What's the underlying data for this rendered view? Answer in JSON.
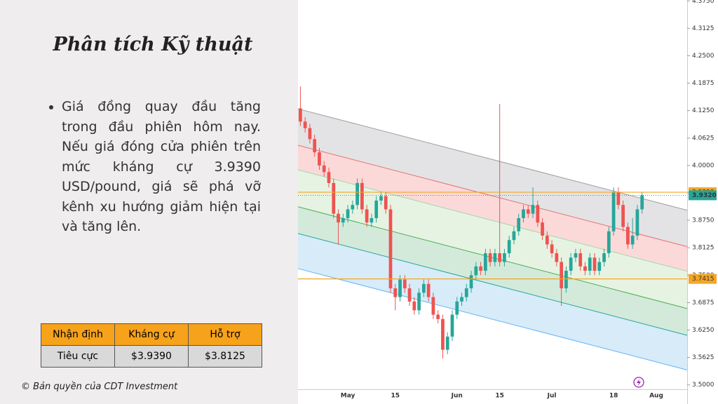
{
  "slide": {
    "title": "Phân tích Kỹ thuật",
    "bullet": "Giá đồng quay đầu tăng trong đầu phiên hôm nay. Nếu giá đóng cửa phiên trên mức kháng cự 3.9390 USD/pound, giá sẽ phá vỡ kênh xu hướng giảm hiện tại và tăng lên.",
    "table": {
      "header": [
        "Nhận định",
        "Kháng cự",
        "Hỗ trợ"
      ],
      "rows": [
        [
          "Tiêu cực",
          "$3.9390",
          "$3.8125"
        ]
      ]
    },
    "copyright": "© Bản quyền của CDT Investment"
  },
  "chart_data": {
    "type": "candlestick",
    "categories": [
      null,
      null,
      null,
      null,
      null,
      null,
      null,
      null,
      null,
      null,
      "May",
      null,
      null,
      null,
      null,
      null,
      null,
      null,
      null,
      null,
      "15",
      null,
      null,
      null,
      null,
      null,
      null,
      null,
      null,
      null,
      null,
      null,
      null,
      "Jun",
      null,
      null,
      null,
      null,
      null,
      null,
      null,
      null,
      "15",
      null,
      null,
      null,
      null,
      null,
      null,
      null,
      null,
      null,
      null,
      "Jul",
      null,
      null,
      null,
      null,
      null,
      null,
      null,
      null,
      null,
      null,
      null,
      null,
      "18",
      null,
      null,
      null,
      null,
      null,
      null,
      null,
      null,
      "Aug",
      null,
      null,
      null,
      null,
      null,
      null
    ],
    "open": [
      4.13,
      4.1,
      4.085,
      4.06,
      4.03,
      4.0,
      3.985,
      3.96,
      3.89,
      3.87,
      3.88,
      3.9,
      3.91,
      3.96,
      3.9,
      3.87,
      3.88,
      3.92,
      3.93,
      3.9,
      3.72,
      3.7,
      3.74,
      3.72,
      3.69,
      3.67,
      3.71,
      3.73,
      3.7,
      3.66,
      3.65,
      3.58,
      3.61,
      3.66,
      3.69,
      3.7,
      3.72,
      3.75,
      3.77,
      3.76,
      3.8,
      3.78,
      3.8,
      3.78,
      3.8,
      3.83,
      3.85,
      3.88,
      3.9,
      3.89,
      3.91,
      3.87,
      3.84,
      3.82,
      3.8,
      3.78,
      3.72,
      3.76,
      3.79,
      3.8,
      3.77,
      3.76,
      3.79,
      3.76,
      3.78,
      3.8,
      3.85,
      3.94,
      3.91,
      3.86,
      3.82,
      3.84,
      3.9,
      null,
      null,
      null,
      null,
      null,
      null,
      null,
      null,
      null
    ],
    "high": [
      4.18,
      4.11,
      4.095,
      4.07,
      4.04,
      4.01,
      3.995,
      3.97,
      3.9,
      3.89,
      3.91,
      3.92,
      3.97,
      3.97,
      3.91,
      3.89,
      3.93,
      3.94,
      3.94,
      3.91,
      3.73,
      3.75,
      3.75,
      3.73,
      3.7,
      3.72,
      3.74,
      3.74,
      3.71,
      3.67,
      3.66,
      3.62,
      3.67,
      3.7,
      3.71,
      3.73,
      3.76,
      3.78,
      3.78,
      3.81,
      3.81,
      3.81,
      4.14,
      3.81,
      3.84,
      3.86,
      3.89,
      3.91,
      3.91,
      3.95,
      3.92,
      3.88,
      3.85,
      3.83,
      3.81,
      3.79,
      3.77,
      3.8,
      3.81,
      3.81,
      3.78,
      3.8,
      3.8,
      3.79,
      3.81,
      3.86,
      3.95,
      3.95,
      3.92,
      3.87,
      3.88,
      3.91,
      3.94,
      null,
      null,
      null,
      null,
      null,
      null,
      null,
      null,
      null
    ],
    "low": [
      4.09,
      4.075,
      4.05,
      4.02,
      3.99,
      3.975,
      3.95,
      3.88,
      3.82,
      3.86,
      3.87,
      3.89,
      3.9,
      3.89,
      3.86,
      3.86,
      3.87,
      3.91,
      3.89,
      3.71,
      3.67,
      3.69,
      3.71,
      3.68,
      3.66,
      3.66,
      3.7,
      3.69,
      3.65,
      3.64,
      3.56,
      3.57,
      3.6,
      3.65,
      3.68,
      3.69,
      3.71,
      3.74,
      3.75,
      3.75,
      3.77,
      3.77,
      3.77,
      3.77,
      3.79,
      3.82,
      3.84,
      3.87,
      3.88,
      3.88,
      3.86,
      3.83,
      3.81,
      3.79,
      3.77,
      3.68,
      3.71,
      3.75,
      3.78,
      3.76,
      3.75,
      3.75,
      3.75,
      3.75,
      3.77,
      3.79,
      3.84,
      3.9,
      3.85,
      3.81,
      3.81,
      3.83,
      3.89,
      null,
      null,
      null,
      null,
      null,
      null,
      null,
      null,
      null
    ],
    "close": [
      4.1,
      4.085,
      4.06,
      4.03,
      4.0,
      3.985,
      3.96,
      3.89,
      3.87,
      3.88,
      3.9,
      3.91,
      3.96,
      3.9,
      3.87,
      3.88,
      3.92,
      3.93,
      3.9,
      3.72,
      3.7,
      3.74,
      3.72,
      3.69,
      3.67,
      3.71,
      3.73,
      3.7,
      3.66,
      3.65,
      3.58,
      3.61,
      3.66,
      3.69,
      3.7,
      3.72,
      3.75,
      3.77,
      3.76,
      3.8,
      3.78,
      3.8,
      3.78,
      3.8,
      3.83,
      3.85,
      3.88,
      3.9,
      3.89,
      3.91,
      3.87,
      3.84,
      3.82,
      3.8,
      3.78,
      3.72,
      3.76,
      3.79,
      3.8,
      3.77,
      3.76,
      3.79,
      3.76,
      3.78,
      3.8,
      3.85,
      3.94,
      3.91,
      3.86,
      3.82,
      3.84,
      3.9,
      3.932,
      null,
      null,
      null,
      null,
      null,
      null,
      null,
      null,
      null
    ],
    "up_color": "#26a69a",
    "down_color": "#ef5350",
    "ylim": [
      3.49,
      4.377
    ],
    "yticks": [
      {
        "value": 3.5,
        "label": "3.5000"
      },
      {
        "value": 3.5625,
        "label": "3.5625"
      },
      {
        "value": 3.625,
        "label": "3.6250"
      },
      {
        "value": 3.6875,
        "label": "3.6875"
      },
      {
        "value": 3.75,
        "label": "3.7500"
      },
      {
        "value": 3.8125,
        "label": "3.8125"
      },
      {
        "value": 3.875,
        "label": "3.8750"
      },
      {
        "value": 3.9375,
        "label": "3.9375"
      },
      {
        "value": 4.0,
        "label": "4.0000"
      },
      {
        "value": 4.0625,
        "label": "4.0625"
      },
      {
        "value": 4.125,
        "label": "4.1250"
      },
      {
        "value": 4.1875,
        "label": "4.1875"
      },
      {
        "value": 4.25,
        "label": "4.2500"
      },
      {
        "value": 4.3125,
        "label": "4.3125"
      },
      {
        "value": 4.375,
        "label": "4.3750"
      }
    ],
    "channel": {
      "start": [
        4.129,
        4.046,
        3.99,
        3.906,
        3.845,
        3.765
      ],
      "end": [
        3.898,
        3.815,
        3.759,
        3.674,
        3.613,
        3.534
      ],
      "line_colors": [
        "#9e9e9e",
        "#e57373",
        "#a5d6a7",
        "#4caf50",
        "#26a69a",
        "#64b5f6"
      ],
      "band_colors": [
        "#e3e3e5",
        "#fbd9d9",
        "#e6f3e3",
        "#d3eadb",
        "#d7ebf8"
      ]
    },
    "hlines": [
      {
        "value": 3.939,
        "label": "3.9390",
        "color": "#f5a623"
      },
      {
        "value": 3.7415,
        "label": "3.7415",
        "color": "#f5a623"
      }
    ],
    "last_price": {
      "value": 3.932,
      "label": "3.9320",
      "color": "#26a69a"
    }
  }
}
